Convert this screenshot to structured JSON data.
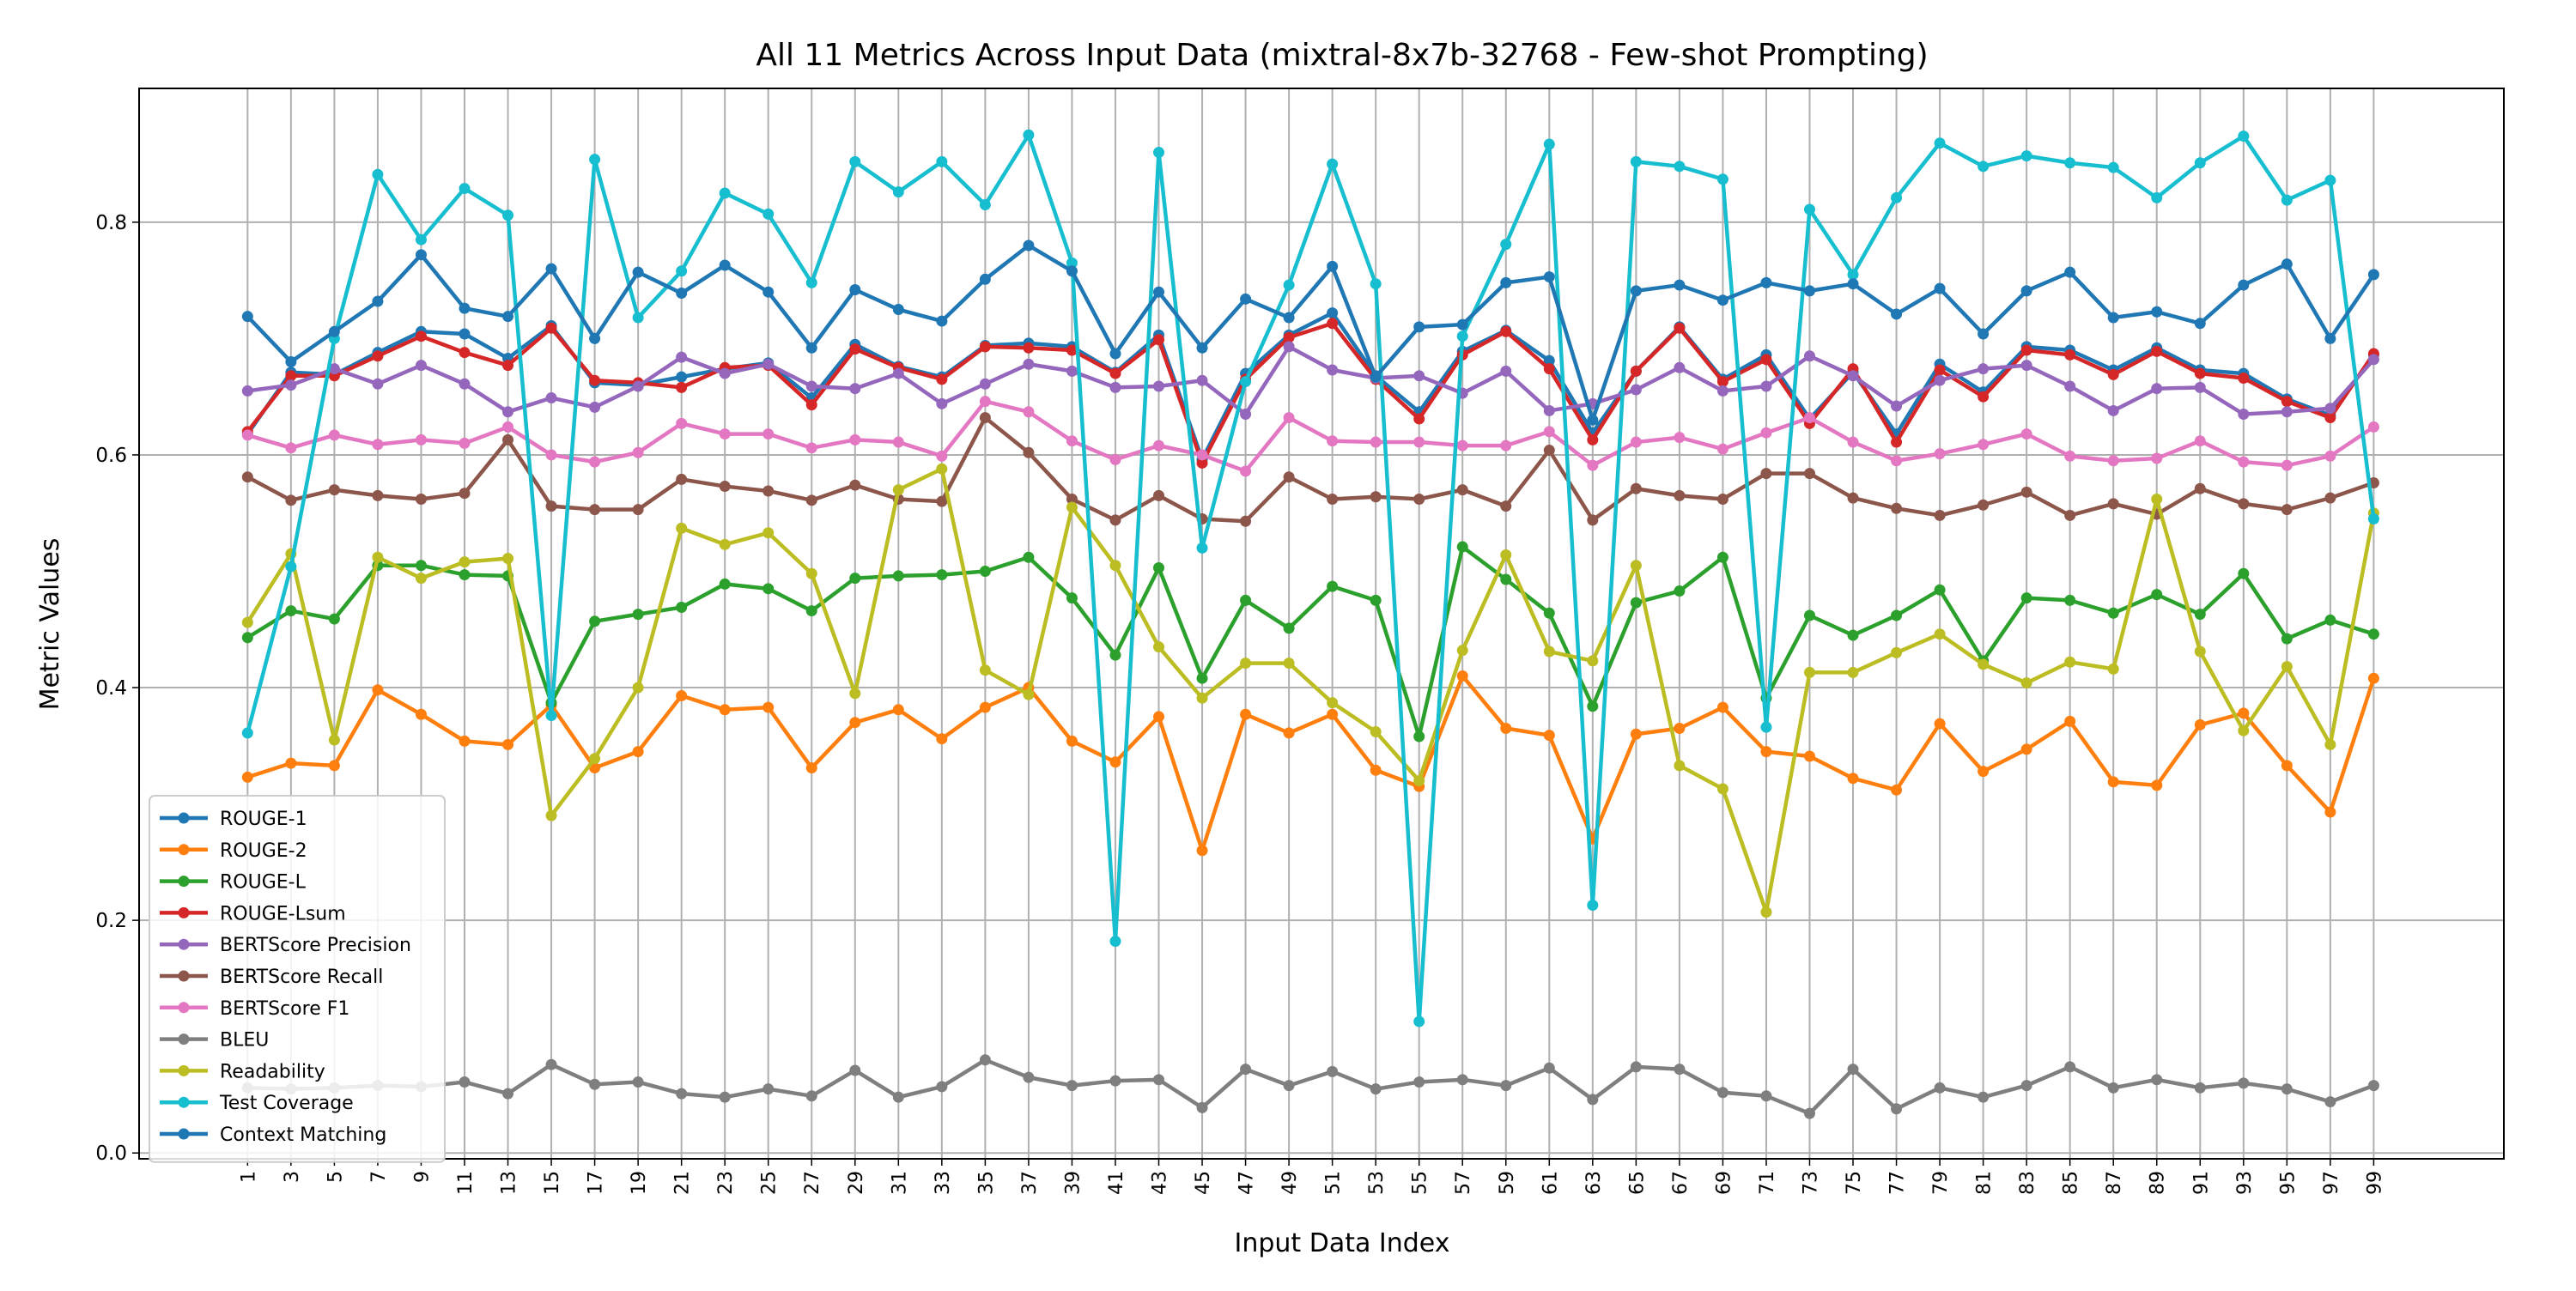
{
  "chart_data": {
    "type": "line",
    "title": "All 11 Metrics Across Input Data (mixtral-8x7b-32768 - Few-shot Prompting)",
    "xlabel": "Input Data Index",
    "ylabel": "Metric Values",
    "x": [
      1,
      3,
      5,
      7,
      9,
      11,
      13,
      15,
      17,
      19,
      21,
      23,
      25,
      27,
      29,
      31,
      33,
      35,
      37,
      39,
      41,
      43,
      45,
      47,
      49,
      51,
      53,
      55,
      57,
      59,
      61,
      63,
      65,
      67,
      69,
      71,
      73,
      75,
      77,
      79,
      81,
      83,
      85,
      87,
      89,
      91,
      93,
      95,
      97,
      99
    ],
    "xlim": [
      -4,
      105
    ],
    "ylim": [
      -0.005,
      0.915
    ],
    "yticks": [
      0.0,
      0.2,
      0.4,
      0.6,
      0.8
    ],
    "ytick_labels": [
      "0.0",
      "0.2",
      "0.4",
      "0.6",
      "0.8"
    ],
    "grid": true,
    "legend_position": "lower-left",
    "series": [
      {
        "name": "ROUGE-1",
        "color": "#1f77b4",
        "values": [
          0.618,
          0.671,
          0.669,
          0.688,
          0.706,
          0.704,
          0.683,
          0.711,
          0.662,
          0.66,
          0.667,
          0.674,
          0.679,
          0.649,
          0.695,
          0.676,
          0.667,
          0.694,
          0.696,
          0.693,
          0.671,
          0.703,
          0.596,
          0.67,
          0.703,
          0.722,
          0.668,
          0.637,
          0.689,
          0.707,
          0.681,
          0.619,
          0.672,
          0.71,
          0.665,
          0.686,
          0.631,
          0.671,
          0.618,
          0.678,
          0.654,
          0.693,
          0.69,
          0.673,
          0.692,
          0.673,
          0.67,
          0.648,
          0.634,
          0.686
        ]
      },
      {
        "name": "ROUGE-2",
        "color": "#ff7f0e",
        "values": [
          0.323,
          0.335,
          0.333,
          0.398,
          0.377,
          0.354,
          0.351,
          0.385,
          0.331,
          0.345,
          0.393,
          0.381,
          0.383,
          0.331,
          0.37,
          0.381,
          0.356,
          0.383,
          0.4,
          0.354,
          0.336,
          0.375,
          0.26,
          0.377,
          0.361,
          0.377,
          0.329,
          0.315,
          0.41,
          0.365,
          0.359,
          0.27,
          0.36,
          0.365,
          0.383,
          0.345,
          0.341,
          0.322,
          0.312,
          0.369,
          0.328,
          0.347,
          0.371,
          0.319,
          0.316,
          0.368,
          0.378,
          0.333,
          0.293,
          0.408
        ]
      },
      {
        "name": "ROUGE-L",
        "color": "#2ca02c",
        "values": [
          0.443,
          0.466,
          0.459,
          0.505,
          0.505,
          0.497,
          0.496,
          0.387,
          0.457,
          0.463,
          0.469,
          0.489,
          0.485,
          0.466,
          0.494,
          0.496,
          0.497,
          0.5,
          0.512,
          0.477,
          0.428,
          0.503,
          0.408,
          0.475,
          0.451,
          0.487,
          0.475,
          0.358,
          0.521,
          0.493,
          0.464,
          0.384,
          0.473,
          0.483,
          0.512,
          0.391,
          0.462,
          0.445,
          0.462,
          0.484,
          0.423,
          0.477,
          0.475,
          0.464,
          0.48,
          0.463,
          0.498,
          0.442,
          0.458,
          0.446
        ]
      },
      {
        "name": "ROUGE-Lsum",
        "color": "#d62728",
        "values": [
          0.62,
          0.668,
          0.668,
          0.685,
          0.702,
          0.688,
          0.677,
          0.709,
          0.664,
          0.662,
          0.658,
          0.675,
          0.677,
          0.643,
          0.691,
          0.675,
          0.665,
          0.693,
          0.692,
          0.69,
          0.67,
          0.699,
          0.593,
          0.665,
          0.701,
          0.713,
          0.665,
          0.631,
          0.686,
          0.706,
          0.674,
          0.613,
          0.672,
          0.709,
          0.663,
          0.682,
          0.627,
          0.674,
          0.611,
          0.673,
          0.65,
          0.69,
          0.686,
          0.669,
          0.689,
          0.67,
          0.666,
          0.646,
          0.632,
          0.687
        ]
      },
      {
        "name": "BERTScore Precision",
        "color": "#9467bd",
        "values": [
          0.655,
          0.66,
          0.674,
          0.661,
          0.677,
          0.661,
          0.637,
          0.649,
          0.641,
          0.659,
          0.684,
          0.67,
          0.678,
          0.659,
          0.657,
          0.67,
          0.644,
          0.661,
          0.678,
          0.672,
          0.658,
          0.659,
          0.664,
          0.635,
          0.693,
          0.673,
          0.666,
          0.668,
          0.653,
          0.672,
          0.638,
          0.644,
          0.656,
          0.675,
          0.655,
          0.659,
          0.685,
          0.668,
          0.642,
          0.664,
          0.674,
          0.677,
          0.659,
          0.638,
          0.657,
          0.658,
          0.635,
          0.637,
          0.64,
          0.682
        ]
      },
      {
        "name": "BERTScore Recall",
        "color": "#8c564b",
        "values": [
          0.581,
          0.561,
          0.57,
          0.565,
          0.562,
          0.567,
          0.613,
          0.556,
          0.553,
          0.553,
          0.579,
          0.573,
          0.569,
          0.561,
          0.574,
          0.562,
          0.56,
          0.632,
          0.602,
          0.562,
          0.544,
          0.565,
          0.545,
          0.543,
          0.581,
          0.562,
          0.564,
          0.562,
          0.57,
          0.556,
          0.604,
          0.544,
          0.571,
          0.565,
          0.562,
          0.584,
          0.584,
          0.563,
          0.554,
          0.548,
          0.557,
          0.568,
          0.548,
          0.558,
          0.549,
          0.571,
          0.558,
          0.553,
          0.563,
          0.576
        ]
      },
      {
        "name": "BERTScore F1",
        "color": "#e377c2",
        "values": [
          0.617,
          0.606,
          0.617,
          0.609,
          0.613,
          0.61,
          0.624,
          0.6,
          0.594,
          0.602,
          0.627,
          0.618,
          0.618,
          0.606,
          0.613,
          0.611,
          0.599,
          0.646,
          0.637,
          0.612,
          0.596,
          0.608,
          0.6,
          0.586,
          0.632,
          0.612,
          0.611,
          0.611,
          0.608,
          0.608,
          0.62,
          0.591,
          0.611,
          0.615,
          0.605,
          0.619,
          0.632,
          0.611,
          0.595,
          0.601,
          0.609,
          0.618,
          0.599,
          0.595,
          0.597,
          0.612,
          0.594,
          0.591,
          0.599,
          0.624
        ]
      },
      {
        "name": "BLEU",
        "color": "#7f7f7f",
        "values": [
          0.056,
          0.055,
          0.056,
          0.058,
          0.057,
          0.061,
          0.051,
          0.076,
          0.059,
          0.061,
          0.051,
          0.048,
          0.055,
          0.049,
          0.071,
          0.048,
          0.057,
          0.08,
          0.065,
          0.058,
          0.062,
          0.063,
          0.039,
          0.072,
          0.058,
          0.07,
          0.055,
          0.061,
          0.063,
          0.058,
          0.073,
          0.046,
          0.074,
          0.072,
          0.052,
          0.049,
          0.034,
          0.072,
          0.038,
          0.056,
          0.048,
          0.058,
          0.074,
          0.056,
          0.063,
          0.056,
          0.06,
          0.055,
          0.044,
          0.058
        ]
      },
      {
        "name": "Readability",
        "color": "#bcbd22",
        "values": [
          0.456,
          0.515,
          0.355,
          0.512,
          0.494,
          0.508,
          0.511,
          0.29,
          0.339,
          0.4,
          0.537,
          0.523,
          0.533,
          0.498,
          0.395,
          0.57,
          0.588,
          0.415,
          0.394,
          0.555,
          0.505,
          0.435,
          0.391,
          0.421,
          0.421,
          0.387,
          0.362,
          0.32,
          0.432,
          0.514,
          0.431,
          0.423,
          0.505,
          0.333,
          0.313,
          0.207,
          0.413,
          0.413,
          0.43,
          0.446,
          0.42,
          0.404,
          0.422,
          0.416,
          0.562,
          0.431,
          0.363,
          0.418,
          0.351,
          0.55
        ]
      },
      {
        "name": "Test Coverage",
        "color": "#17becf",
        "values": [
          0.361,
          0.504,
          0.7,
          0.841,
          0.785,
          0.829,
          0.806,
          0.376,
          0.854,
          0.718,
          0.758,
          0.825,
          0.807,
          0.748,
          0.852,
          0.826,
          0.852,
          0.815,
          0.875,
          0.765,
          0.182,
          0.86,
          0.52,
          0.663,
          0.746,
          0.85,
          0.747,
          0.113,
          0.702,
          0.781,
          0.867,
          0.213,
          0.852,
          0.848,
          0.837,
          0.366,
          0.811,
          0.755,
          0.821,
          0.868,
          0.848,
          0.857,
          0.851,
          0.847,
          0.821,
          0.851,
          0.874,
          0.819,
          0.836,
          0.545
        ]
      },
      {
        "name": "Context Matching",
        "color": "#1f77b4",
        "values": [
          0.719,
          0.68,
          0.706,
          0.732,
          0.772,
          0.726,
          0.719,
          0.76,
          0.7,
          0.757,
          0.739,
          0.763,
          0.74,
          0.692,
          0.742,
          0.725,
          0.715,
          0.751,
          0.78,
          0.758,
          0.687,
          0.74,
          0.692,
          0.734,
          0.718,
          0.762,
          0.667,
          0.71,
          0.712,
          0.748,
          0.753,
          0.63,
          0.741,
          0.746,
          0.733,
          0.748,
          0.741,
          0.747,
          0.721,
          0.743,
          0.704,
          0.741,
          0.757,
          0.718,
          0.723,
          0.713,
          0.746,
          0.764,
          0.7,
          0.755
        ]
      }
    ]
  }
}
